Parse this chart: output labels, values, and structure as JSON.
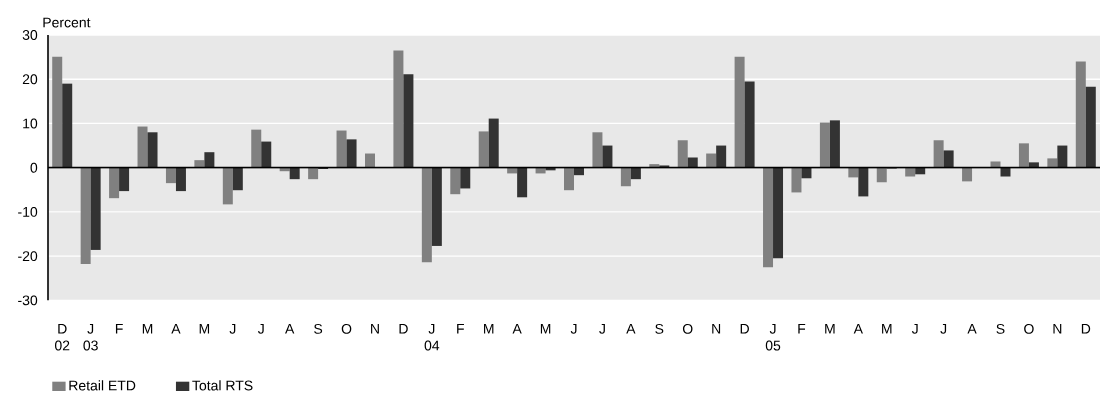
{
  "chart_data": {
    "type": "bar",
    "ylabel": "Percent",
    "categories": [
      "D 02",
      "J 03",
      "F",
      "M",
      "A",
      "M",
      "J",
      "J",
      "A",
      "S",
      "O",
      "N",
      "D",
      "J 04",
      "F",
      "M",
      "A",
      "M",
      "J",
      "J",
      "A",
      "S",
      "O",
      "N",
      "D",
      "J 05",
      "F",
      "M",
      "A",
      "M",
      "J",
      "J",
      "A",
      "S",
      "O",
      "N",
      "D"
    ],
    "series": [
      {
        "name": "Retail ETD",
        "color": "#808080",
        "values": [
          25.1,
          -21.8,
          -6.9,
          9.3,
          -3.5,
          1.7,
          -8.3,
          8.6,
          -0.8,
          -2.6,
          8.4,
          3.2,
          26.5,
          -21.4,
          -6.0,
          8.2,
          -1.3,
          -1.3,
          -5.1,
          8.0,
          -4.2,
          0.8,
          6.2,
          3.2,
          25.1,
          -22.5,
          -5.6,
          10.2,
          -2.2,
          -3.3,
          -2.0,
          6.2,
          -3.1,
          1.4,
          5.5,
          2.1,
          24.0
        ]
      },
      {
        "name": "Total RTS",
        "color": "#333333",
        "values": [
          19.0,
          -18.6,
          -5.3,
          8.0,
          -5.3,
          3.5,
          -5.1,
          5.9,
          -2.6,
          -0.3,
          6.4,
          null,
          21.1,
          -17.7,
          -4.7,
          11.1,
          -6.7,
          -0.6,
          -1.7,
          5.0,
          -2.6,
          0.5,
          2.3,
          5.0,
          19.5,
          -20.5,
          -2.4,
          10.7,
          -6.5,
          -0.2,
          -1.5,
          3.9,
          null,
          -2.0,
          1.2,
          5.0,
          18.3
        ]
      }
    ],
    "ylim": [
      -30,
      30
    ],
    "yticks": [
      -30,
      -20,
      -10,
      0,
      10,
      20,
      30
    ],
    "grid": "y",
    "legend": "bottom"
  }
}
